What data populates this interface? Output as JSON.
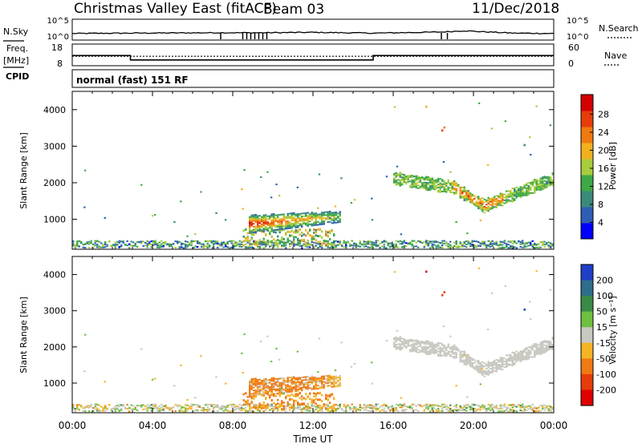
{
  "header": {
    "title": "Christmas Valley East (fitACF)",
    "beam": "Beam 03",
    "date": "11/Dec/2018"
  },
  "left_labels": {
    "nsky": "N.Sky",
    "freq": "Freq.",
    "freq_unit": "[MHz]",
    "cpid": "CPID"
  },
  "right_labels": {
    "nsearch": "N.Search",
    "nave": "Nave"
  },
  "top_axes": {
    "noise_ticks_left": [
      "10^5",
      "10^0"
    ],
    "noise_ticks_right": [
      "10^5",
      "10^0"
    ],
    "freq_ticks": [
      "18",
      "8"
    ],
    "nave_ticks": [
      "60",
      "0"
    ],
    "cpid_text": "normal (fast) 151 RF"
  },
  "chart_data": [
    {
      "type": "line",
      "panel": "sky-noise",
      "ylabel": "N.Sky",
      "scale": "log",
      "x": [
        0,
        3,
        7.3,
        9.6,
        12,
        15,
        18.5,
        19.5,
        22,
        24
      ],
      "y": [
        1.5,
        1.6,
        1.7,
        1.7,
        1.8,
        1.6,
        1.9,
        2.2,
        1.6,
        1.5
      ],
      "grid": false
    },
    {
      "type": "line",
      "panel": "frequency-nave",
      "series": [
        {
          "name": "Freq.",
          "x": [
            0,
            2.9,
            2.9,
            15,
            15,
            24
          ],
          "y": [
            12.5,
            12.5,
            10.4,
            10.4,
            12.5,
            12.5
          ]
        },
        {
          "name": "Nave",
          "x": [
            0,
            24
          ],
          "y": [
            25,
            25
          ]
        }
      ],
      "ylim_freq": [
        8,
        18
      ],
      "ylim_nave": [
        0,
        60
      ]
    },
    {
      "type": "heatmap",
      "panel": "power",
      "title": "",
      "xlabel": "",
      "ylabel": "Slant Range [km]",
      "x_ticks": [
        "00:00",
        "04:00",
        "08:00",
        "12:00",
        "16:00",
        "20:00",
        "00:00"
      ],
      "xlim_hours": [
        0,
        24
      ],
      "y_ticks": [
        1000,
        2000,
        3000,
        4000
      ],
      "ylim": [
        180,
        4500
      ],
      "colorbar_label": "Power [dB]",
      "colorbar_ticks": [
        4,
        8,
        12,
        16,
        20,
        24,
        28
      ],
      "colorbar_colors": [
        "#0000ff",
        "#2e5eb4",
        "#3a8a7a",
        "#3fa848",
        "#a8cc3c",
        "#f2b01e",
        "#f07a10",
        "#e63d0a",
        "#d40000"
      ],
      "features": [
        {
          "name": "evening-band",
          "x_hours": [
            8.6,
            13.2
          ],
          "range_km": [
            650,
            1250
          ],
          "peak_db": 26
        },
        {
          "name": "post-midnight-band",
          "x_hours": [
            16.0,
            24.0
          ],
          "range_km": [
            1200,
            2600
          ],
          "peak_db": 26
        },
        {
          "name": "near-range-ground-clutter",
          "x_hours": [
            0.0,
            24.0
          ],
          "range_km": [
            180,
            450
          ],
          "peak_db": 12
        }
      ]
    },
    {
      "type": "heatmap",
      "panel": "velocity",
      "xlabel": "Time UT",
      "ylabel": "Slant Range [km]",
      "x_ticks": [
        "00:00",
        "04:00",
        "08:00",
        "12:00",
        "16:00",
        "20:00",
        "00:00"
      ],
      "xlim_hours": [
        0,
        24
      ],
      "y_ticks": [
        1000,
        2000,
        3000,
        4000
      ],
      "ylim": [
        180,
        4500
      ],
      "colorbar_label": "Velocity [m s⁻¹]",
      "colorbar_ticks": [
        "200",
        "100",
        "50",
        "15",
        "-15",
        "-50",
        "-100",
        "-200"
      ],
      "colorbar_colors": [
        "#1f3fc8",
        "#2e6e8a",
        "#3a8a48",
        "#6dc040",
        "#c8c8c0",
        "#f4b424",
        "#f07a14",
        "#e63c0a",
        "#e00000"
      ],
      "features": [
        {
          "name": "evening-band",
          "x_hours": [
            8.6,
            13.2
          ],
          "range_km": [
            650,
            1250
          ],
          "velocity_ms": -40
        },
        {
          "name": "post-midnight-band",
          "x_hours": [
            16.0,
            24.0
          ],
          "range_km": [
            1200,
            2600
          ],
          "velocity_ms": 0
        },
        {
          "name": "near-range-ground-clutter",
          "x_hours": [
            0.0,
            24.0
          ],
          "range_km": [
            180,
            450
          ],
          "velocity_ms": 0
        }
      ]
    }
  ]
}
